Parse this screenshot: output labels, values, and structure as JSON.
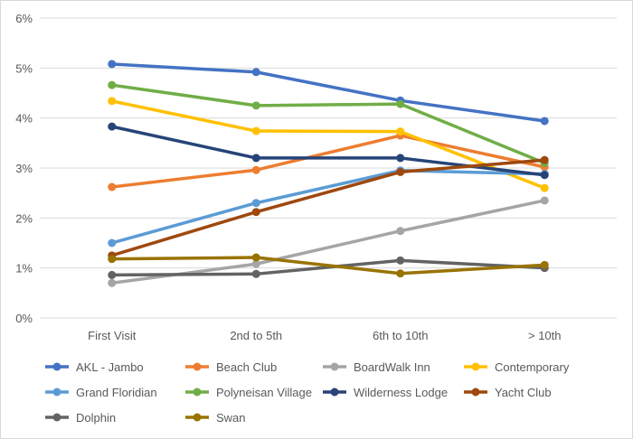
{
  "chart_data": {
    "type": "line",
    "title": "",
    "xlabel": "",
    "ylabel": "",
    "categories": [
      "First Visit",
      "2nd to 5th",
      "6th to 10th",
      "> 10th"
    ],
    "y_ticks": [
      "0%",
      "1%",
      "2%",
      "3%",
      "4%",
      "5%",
      "6%"
    ],
    "ylim": [
      0,
      6
    ],
    "y_unit": "%",
    "grid": true,
    "legend_position": "bottom",
    "series": [
      {
        "name": "AKL - Jambo",
        "color": "#4472C4",
        "values": [
          5.08,
          4.92,
          4.35,
          3.94
        ]
      },
      {
        "name": "Beach Club",
        "color": "#ED7D31",
        "values": [
          2.62,
          2.96,
          3.65,
          3.02
        ]
      },
      {
        "name": "BoardWalk Inn",
        "color": "#A5A5A5",
        "values": [
          0.7,
          1.08,
          1.74,
          2.35
        ]
      },
      {
        "name": "Contemporary",
        "color": "#FFC000",
        "values": [
          4.34,
          3.74,
          3.73,
          2.6
        ]
      },
      {
        "name": "Grand Floridian",
        "color": "#5B9BD5",
        "values": [
          1.5,
          2.3,
          2.95,
          2.88
        ]
      },
      {
        "name": "Polyneisan Village",
        "color": "#70AD47",
        "values": [
          4.66,
          4.25,
          4.28,
          3.1
        ]
      },
      {
        "name": "Wilderness Lodge",
        "color": "#264478",
        "values": [
          3.83,
          3.2,
          3.2,
          2.86
        ]
      },
      {
        "name": "Yacht Club",
        "color": "#9E480E",
        "values": [
          1.25,
          2.12,
          2.92,
          3.16
        ]
      },
      {
        "name": "Dolphin",
        "color": "#636363",
        "values": [
          0.86,
          0.88,
          1.15,
          1.0
        ]
      },
      {
        "name": "Swan",
        "color": "#997300",
        "values": [
          1.18,
          1.21,
          0.89,
          1.06
        ]
      }
    ]
  }
}
